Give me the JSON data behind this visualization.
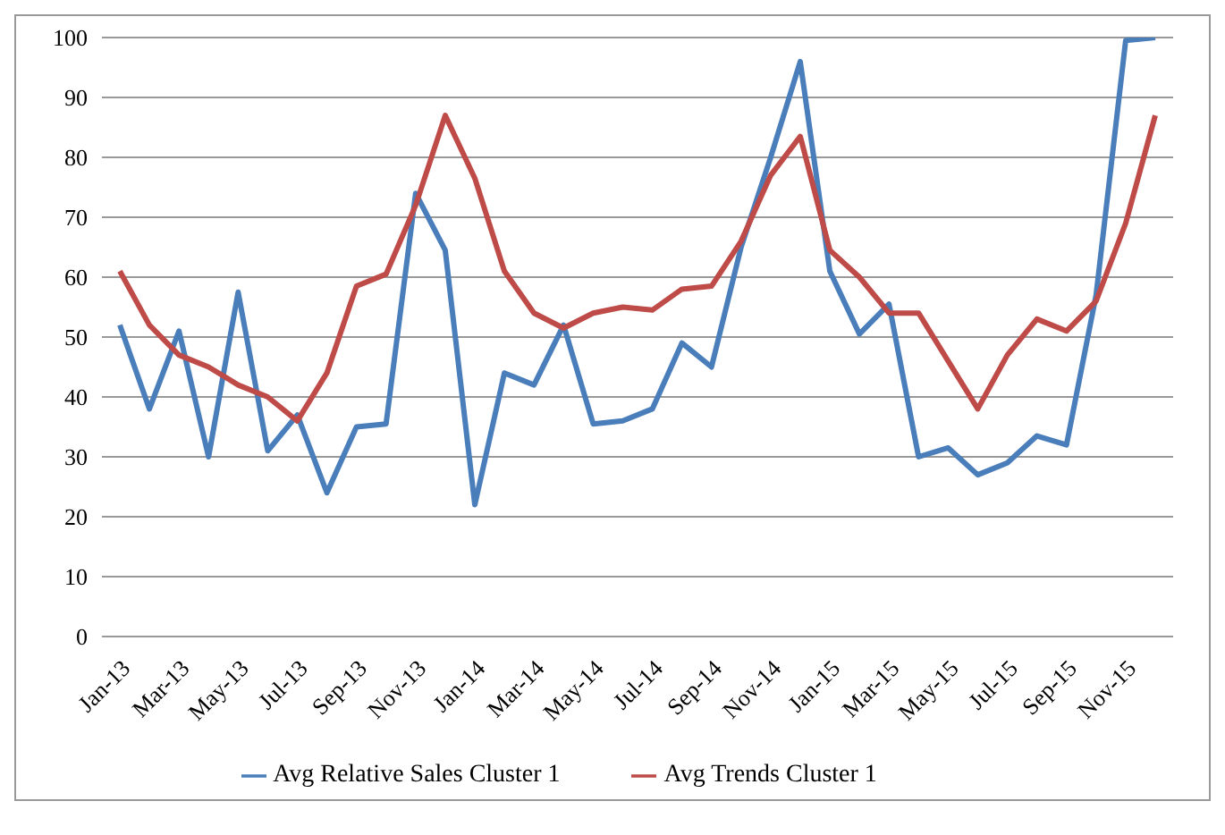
{
  "chart_data": {
    "type": "line",
    "categories": [
      "Jan-13",
      null,
      "Mar-13",
      null,
      "May-13",
      null,
      "Jul-13",
      null,
      "Sep-13",
      null,
      "Nov-13",
      null,
      "Jan-14",
      null,
      "Mar-14",
      null,
      "May-14",
      null,
      "Jul-14",
      null,
      "Sep-14",
      null,
      "Nov-14",
      null,
      "Jan-15",
      null,
      "Mar-15",
      null,
      "May-15",
      null,
      "Jul-15",
      null,
      "Sep-15",
      null,
      "Nov-15",
      null
    ],
    "series": [
      {
        "name": "Avg Relative Sales Cluster 1",
        "color": "#4a7ebb",
        "values": [
          52,
          38,
          51,
          30,
          57.5,
          31,
          37,
          24,
          35,
          35.5,
          74,
          64.5,
          22,
          44,
          42,
          52,
          35.5,
          36,
          38,
          49,
          45,
          65,
          80,
          96,
          61,
          50.5,
          55.5,
          30,
          31.5,
          27,
          29,
          33.5,
          32,
          57,
          99.5,
          100
        ]
      },
      {
        "name": "Avg Trends Cluster 1",
        "color": "#be4b48",
        "values": [
          61,
          52,
          47,
          45,
          42,
          40,
          36,
          44,
          58.5,
          60.5,
          72,
          87,
          76.5,
          61,
          54,
          51.5,
          54,
          55,
          54.5,
          58,
          58.5,
          66,
          77,
          83.5,
          64.5,
          60,
          54,
          54,
          46,
          38,
          47,
          53,
          51,
          56,
          69,
          87
        ]
      }
    ],
    "ylim": [
      0,
      100
    ],
    "yticks": [
      0,
      10,
      20,
      30,
      40,
      50,
      60,
      70,
      80,
      90,
      100
    ],
    "grid": "y",
    "legend": "bottom",
    "marker": "none",
    "line_style": "solid"
  }
}
